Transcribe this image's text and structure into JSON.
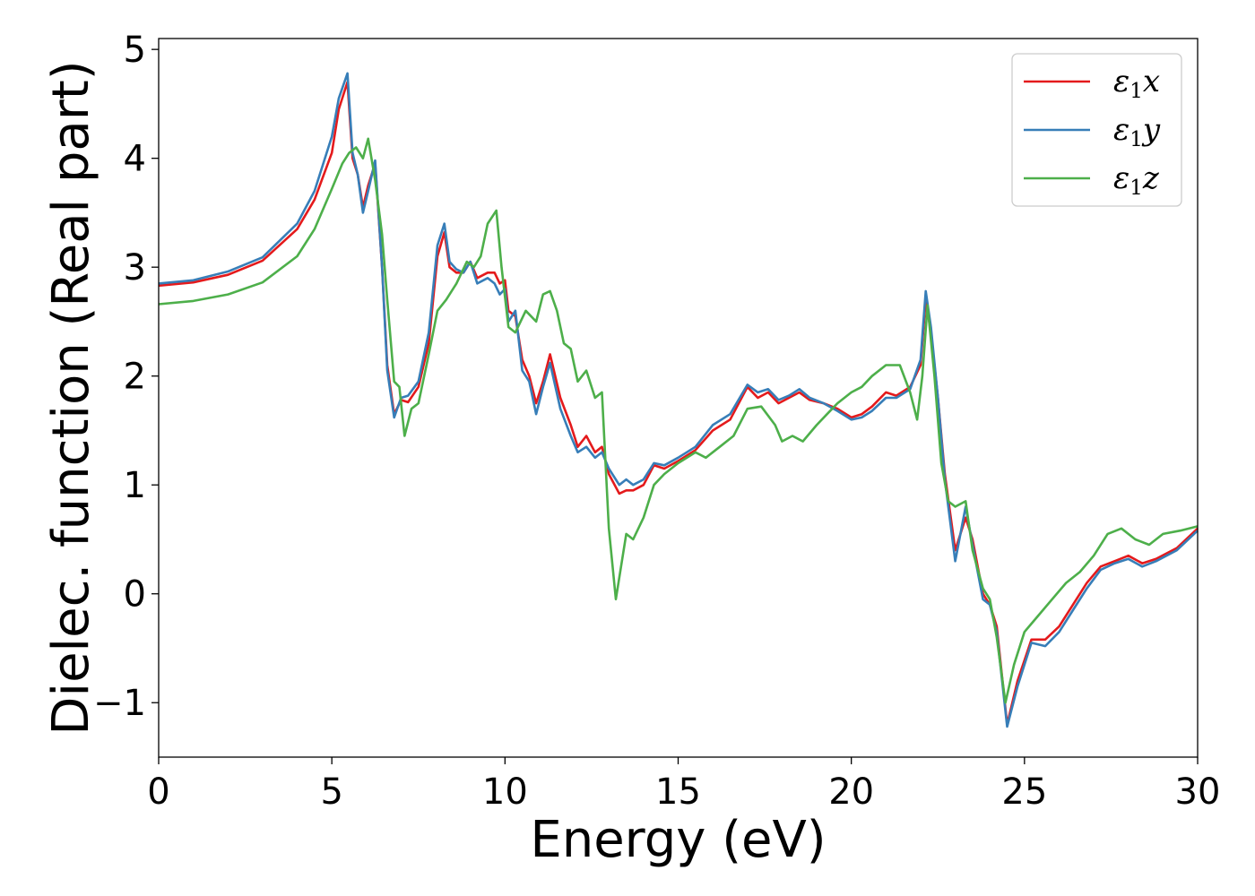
{
  "chart_data": {
    "type": "line",
    "title": "",
    "xlabel": "Energy (eV)",
    "ylabel": "Dielec. function (Real part)",
    "xlim": [
      0,
      30
    ],
    "ylim": [
      -1.5,
      5.1
    ],
    "xticks": [
      0,
      5,
      10,
      15,
      20,
      25,
      30
    ],
    "xtick_labels": [
      "0",
      "5",
      "10",
      "15",
      "20",
      "25",
      "30"
    ],
    "yticks": [
      -1,
      0,
      1,
      2,
      3,
      4,
      5
    ],
    "ytick_labels": [
      "−1",
      "0",
      "1",
      "2",
      "3",
      "4",
      "5"
    ],
    "grid": false,
    "legend": "top-right",
    "series": [
      {
        "name": "ε₁x",
        "legend_main": "ε",
        "legend_sub": "1",
        "legend_var": "x",
        "color": "#e41a1c",
        "points": [
          [
            0,
            2.83
          ],
          [
            1,
            2.86
          ],
          [
            2,
            2.93
          ],
          [
            3,
            3.06
          ],
          [
            4,
            3.35
          ],
          [
            4.5,
            3.62
          ],
          [
            5,
            4.05
          ],
          [
            5.2,
            4.45
          ],
          [
            5.45,
            4.7
          ],
          [
            5.6,
            4.0
          ],
          [
            5.75,
            3.85
          ],
          [
            5.9,
            3.55
          ],
          [
            6.05,
            3.75
          ],
          [
            6.25,
            3.95
          ],
          [
            6.45,
            3.0
          ],
          [
            6.6,
            2.1
          ],
          [
            6.8,
            1.65
          ],
          [
            7.0,
            1.78
          ],
          [
            7.2,
            1.76
          ],
          [
            7.5,
            1.9
          ],
          [
            7.8,
            2.3
          ],
          [
            8.05,
            3.1
          ],
          [
            8.25,
            3.32
          ],
          [
            8.4,
            3.0
          ],
          [
            8.6,
            2.95
          ],
          [
            8.8,
            2.95
          ],
          [
            9.0,
            3.05
          ],
          [
            9.2,
            2.9
          ],
          [
            9.5,
            2.95
          ],
          [
            9.7,
            2.95
          ],
          [
            9.85,
            2.85
          ],
          [
            10.0,
            2.88
          ],
          [
            10.1,
            2.6
          ],
          [
            10.3,
            2.55
          ],
          [
            10.5,
            2.15
          ],
          [
            10.7,
            2.0
          ],
          [
            10.9,
            1.75
          ],
          [
            11.1,
            1.95
          ],
          [
            11.3,
            2.2
          ],
          [
            11.6,
            1.8
          ],
          [
            11.9,
            1.55
          ],
          [
            12.1,
            1.35
          ],
          [
            12.35,
            1.45
          ],
          [
            12.6,
            1.3
          ],
          [
            12.8,
            1.35
          ],
          [
            13.0,
            1.1
          ],
          [
            13.3,
            0.92
          ],
          [
            13.5,
            0.95
          ],
          [
            13.7,
            0.95
          ],
          [
            14.0,
            1.0
          ],
          [
            14.3,
            1.18
          ],
          [
            14.6,
            1.15
          ],
          [
            15.0,
            1.22
          ],
          [
            15.5,
            1.32
          ],
          [
            16.0,
            1.5
          ],
          [
            16.5,
            1.6
          ],
          [
            17.0,
            1.9
          ],
          [
            17.3,
            1.8
          ],
          [
            17.6,
            1.85
          ],
          [
            17.9,
            1.75
          ],
          [
            18.2,
            1.8
          ],
          [
            18.5,
            1.85
          ],
          [
            18.8,
            1.78
          ],
          [
            19.2,
            1.75
          ],
          [
            19.6,
            1.7
          ],
          [
            20.0,
            1.62
          ],
          [
            20.3,
            1.65
          ],
          [
            20.6,
            1.72
          ],
          [
            21.0,
            1.85
          ],
          [
            21.3,
            1.82
          ],
          [
            21.7,
            1.9
          ],
          [
            22.0,
            2.1
          ],
          [
            22.15,
            2.7
          ],
          [
            22.3,
            2.4
          ],
          [
            22.5,
            1.8
          ],
          [
            22.7,
            1.1
          ],
          [
            23.0,
            0.4
          ],
          [
            23.3,
            0.7
          ],
          [
            23.5,
            0.5
          ],
          [
            23.8,
            0.0
          ],
          [
            24.0,
            -0.1
          ],
          [
            24.2,
            -0.3
          ],
          [
            24.5,
            -1.2
          ],
          [
            24.8,
            -0.8
          ],
          [
            25.2,
            -0.42
          ],
          [
            25.6,
            -0.42
          ],
          [
            26.0,
            -0.3
          ],
          [
            26.4,
            -0.1
          ],
          [
            26.8,
            0.1
          ],
          [
            27.2,
            0.25
          ],
          [
            27.6,
            0.3
          ],
          [
            28.0,
            0.35
          ],
          [
            28.4,
            0.28
          ],
          [
            28.8,
            0.32
          ],
          [
            29.4,
            0.42
          ],
          [
            30.0,
            0.6
          ]
        ]
      },
      {
        "name": "ε₁y",
        "legend_main": "ε",
        "legend_sub": "1",
        "legend_var": "y",
        "color": "#377eb8",
        "points": [
          [
            0,
            2.85
          ],
          [
            1,
            2.88
          ],
          [
            2,
            2.96
          ],
          [
            3,
            3.09
          ],
          [
            4,
            3.4
          ],
          [
            4.5,
            3.7
          ],
          [
            5,
            4.2
          ],
          [
            5.2,
            4.55
          ],
          [
            5.45,
            4.78
          ],
          [
            5.6,
            4.05
          ],
          [
            5.75,
            3.85
          ],
          [
            5.9,
            3.5
          ],
          [
            6.05,
            3.7
          ],
          [
            6.25,
            3.98
          ],
          [
            6.45,
            3.0
          ],
          [
            6.6,
            2.05
          ],
          [
            6.8,
            1.62
          ],
          [
            7.0,
            1.8
          ],
          [
            7.2,
            1.82
          ],
          [
            7.5,
            1.95
          ],
          [
            7.8,
            2.4
          ],
          [
            8.05,
            3.2
          ],
          [
            8.25,
            3.4
          ],
          [
            8.4,
            3.05
          ],
          [
            8.6,
            2.98
          ],
          [
            8.8,
            2.95
          ],
          [
            9.0,
            3.05
          ],
          [
            9.2,
            2.85
          ],
          [
            9.5,
            2.9
          ],
          [
            9.7,
            2.85
          ],
          [
            9.85,
            2.75
          ],
          [
            10.0,
            2.8
          ],
          [
            10.1,
            2.5
          ],
          [
            10.3,
            2.6
          ],
          [
            10.5,
            2.05
          ],
          [
            10.7,
            1.95
          ],
          [
            10.9,
            1.65
          ],
          [
            11.1,
            1.9
          ],
          [
            11.3,
            2.12
          ],
          [
            11.6,
            1.7
          ],
          [
            11.9,
            1.45
          ],
          [
            12.1,
            1.3
          ],
          [
            12.35,
            1.35
          ],
          [
            12.6,
            1.25
          ],
          [
            12.8,
            1.3
          ],
          [
            13.0,
            1.15
          ],
          [
            13.3,
            1.0
          ],
          [
            13.5,
            1.05
          ],
          [
            13.7,
            1.0
          ],
          [
            14.0,
            1.05
          ],
          [
            14.3,
            1.2
          ],
          [
            14.6,
            1.18
          ],
          [
            15.0,
            1.25
          ],
          [
            15.5,
            1.35
          ],
          [
            16.0,
            1.55
          ],
          [
            16.5,
            1.65
          ],
          [
            17.0,
            1.92
          ],
          [
            17.3,
            1.85
          ],
          [
            17.6,
            1.88
          ],
          [
            17.9,
            1.78
          ],
          [
            18.2,
            1.82
          ],
          [
            18.5,
            1.88
          ],
          [
            18.8,
            1.8
          ],
          [
            19.2,
            1.75
          ],
          [
            19.6,
            1.68
          ],
          [
            20.0,
            1.6
          ],
          [
            20.3,
            1.62
          ],
          [
            20.6,
            1.68
          ],
          [
            21.0,
            1.8
          ],
          [
            21.3,
            1.8
          ],
          [
            21.7,
            1.88
          ],
          [
            22.0,
            2.15
          ],
          [
            22.15,
            2.78
          ],
          [
            22.3,
            2.45
          ],
          [
            22.5,
            1.8
          ],
          [
            22.7,
            1.05
          ],
          [
            23.0,
            0.3
          ],
          [
            23.3,
            0.8
          ],
          [
            23.5,
            0.45
          ],
          [
            23.8,
            -0.05
          ],
          [
            24.0,
            -0.1
          ],
          [
            24.2,
            -0.35
          ],
          [
            24.5,
            -1.22
          ],
          [
            24.8,
            -0.85
          ],
          [
            25.2,
            -0.45
          ],
          [
            25.6,
            -0.48
          ],
          [
            26.0,
            -0.35
          ],
          [
            26.4,
            -0.15
          ],
          [
            26.8,
            0.05
          ],
          [
            27.2,
            0.22
          ],
          [
            27.6,
            0.28
          ],
          [
            28.0,
            0.32
          ],
          [
            28.4,
            0.25
          ],
          [
            28.8,
            0.3
          ],
          [
            29.4,
            0.4
          ],
          [
            30.0,
            0.58
          ]
        ]
      },
      {
        "name": "ε₁z",
        "legend_main": "ε",
        "legend_sub": "1",
        "legend_var": "z",
        "color": "#4daf4a",
        "points": [
          [
            0,
            2.66
          ],
          [
            1,
            2.69
          ],
          [
            2,
            2.75
          ],
          [
            3,
            2.86
          ],
          [
            4,
            3.1
          ],
          [
            4.5,
            3.35
          ],
          [
            5,
            3.72
          ],
          [
            5.3,
            3.95
          ],
          [
            5.5,
            4.05
          ],
          [
            5.7,
            4.1
          ],
          [
            5.9,
            4.0
          ],
          [
            6.05,
            4.18
          ],
          [
            6.25,
            3.8
          ],
          [
            6.45,
            3.3
          ],
          [
            6.6,
            2.7
          ],
          [
            6.8,
            1.95
          ],
          [
            6.95,
            1.9
          ],
          [
            7.1,
            1.45
          ],
          [
            7.3,
            1.7
          ],
          [
            7.5,
            1.75
          ],
          [
            7.8,
            2.2
          ],
          [
            8.05,
            2.6
          ],
          [
            8.3,
            2.7
          ],
          [
            8.6,
            2.85
          ],
          [
            8.9,
            3.05
          ],
          [
            9.1,
            3.0
          ],
          [
            9.3,
            3.1
          ],
          [
            9.5,
            3.4
          ],
          [
            9.75,
            3.52
          ],
          [
            9.9,
            3.0
          ],
          [
            10.1,
            2.45
          ],
          [
            10.3,
            2.4
          ],
          [
            10.6,
            2.6
          ],
          [
            10.9,
            2.5
          ],
          [
            11.1,
            2.75
          ],
          [
            11.3,
            2.78
          ],
          [
            11.5,
            2.6
          ],
          [
            11.7,
            2.3
          ],
          [
            11.9,
            2.25
          ],
          [
            12.1,
            1.95
          ],
          [
            12.35,
            2.05
          ],
          [
            12.6,
            1.8
          ],
          [
            12.8,
            1.85
          ],
          [
            13.0,
            0.6
          ],
          [
            13.2,
            -0.05
          ],
          [
            13.5,
            0.55
          ],
          [
            13.7,
            0.5
          ],
          [
            14.0,
            0.7
          ],
          [
            14.3,
            1.0
          ],
          [
            14.6,
            1.1
          ],
          [
            15.0,
            1.2
          ],
          [
            15.5,
            1.3
          ],
          [
            15.8,
            1.25
          ],
          [
            16.2,
            1.35
          ],
          [
            16.6,
            1.45
          ],
          [
            17.0,
            1.7
          ],
          [
            17.4,
            1.72
          ],
          [
            17.8,
            1.55
          ],
          [
            18.0,
            1.4
          ],
          [
            18.3,
            1.45
          ],
          [
            18.6,
            1.4
          ],
          [
            19.0,
            1.55
          ],
          [
            19.3,
            1.65
          ],
          [
            19.6,
            1.75
          ],
          [
            20.0,
            1.85
          ],
          [
            20.3,
            1.9
          ],
          [
            20.6,
            2.0
          ],
          [
            21.0,
            2.1
          ],
          [
            21.4,
            2.1
          ],
          [
            21.7,
            1.85
          ],
          [
            21.9,
            1.6
          ],
          [
            22.05,
            2.0
          ],
          [
            22.2,
            2.65
          ],
          [
            22.4,
            2.0
          ],
          [
            22.6,
            1.2
          ],
          [
            22.8,
            0.85
          ],
          [
            23.0,
            0.8
          ],
          [
            23.3,
            0.85
          ],
          [
            23.5,
            0.4
          ],
          [
            23.8,
            0.05
          ],
          [
            24.0,
            -0.05
          ],
          [
            24.2,
            -0.4
          ],
          [
            24.45,
            -1.0
          ],
          [
            24.7,
            -0.65
          ],
          [
            25.0,
            -0.35
          ],
          [
            25.4,
            -0.2
          ],
          [
            25.8,
            -0.05
          ],
          [
            26.2,
            0.1
          ],
          [
            26.6,
            0.2
          ],
          [
            27.0,
            0.35
          ],
          [
            27.4,
            0.55
          ],
          [
            27.8,
            0.6
          ],
          [
            28.2,
            0.5
          ],
          [
            28.6,
            0.45
          ],
          [
            29.0,
            0.55
          ],
          [
            29.5,
            0.58
          ],
          [
            30.0,
            0.62
          ]
        ]
      }
    ]
  }
}
